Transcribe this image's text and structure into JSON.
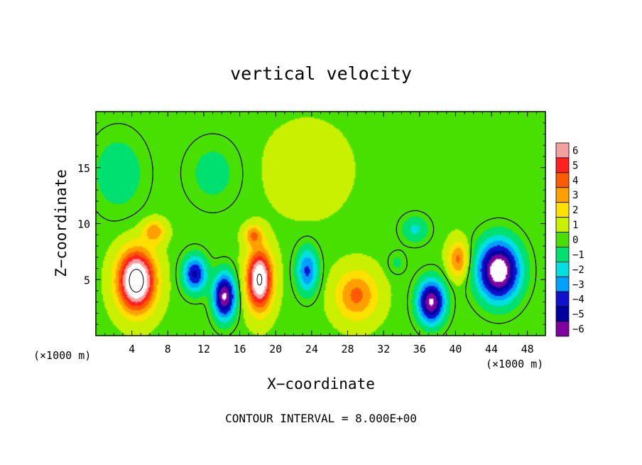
{
  "chart_data": {
    "type": "heatmap",
    "title": "vertical velocity",
    "xlabel": "X−coordinate",
    "ylabel": "Z−coordinate",
    "x_units_left": "(×1000 m)",
    "x_units_right": "(×1000 m)",
    "footer": "CONTOUR INTERVAL = 8.000E+00",
    "xlim": [
      0,
      50
    ],
    "ylim": [
      0,
      20
    ],
    "x_ticks": [
      4,
      8,
      12,
      16,
      20,
      24,
      28,
      32,
      36,
      40,
      44,
      48
    ],
    "y_ticks": [
      5,
      10,
      15
    ],
    "colorbar": {
      "levels": [
        6,
        5,
        4,
        3,
        2,
        1,
        0,
        -1,
        -2,
        -3,
        -4,
        -5,
        -6
      ],
      "labels": [
        "6",
        "5",
        "4",
        "3",
        "2",
        "1",
        "0",
        "−1",
        "−2",
        "−3",
        "−4",
        "−5",
        "−6"
      ],
      "colors": [
        "#f4a0a0",
        "#ff2020",
        "#ff5a00",
        "#ffa000",
        "#ffe000",
        "#c8f000",
        "#48e000",
        "#00e070",
        "#00e0e0",
        "#00a0ff",
        "#1010d0",
        "#0000a0",
        "#8000a0"
      ],
      "over_color": "#ffffff",
      "under_color": "#ffffff"
    },
    "background_value": 0.3,
    "features": [
      {
        "x": 4.5,
        "z": 4.9,
        "sx": 2.0,
        "sz": 2.6,
        "value": 9
      },
      {
        "x": 18.2,
        "z": 5.0,
        "sx": 1.4,
        "sz": 2.6,
        "value": 8
      },
      {
        "x": 6.5,
        "z": 9.3,
        "sx": 1.2,
        "sz": 1.0,
        "value": 3
      },
      {
        "x": 17.5,
        "z": 9.0,
        "sx": 1.0,
        "sz": 0.9,
        "value": 3
      },
      {
        "x": 11.0,
        "z": 5.5,
        "sx": 1.3,
        "sz": 1.6,
        "value": -5
      },
      {
        "x": 14.3,
        "z": 3.5,
        "sx": 1.2,
        "sz": 2.0,
        "value": -7
      },
      {
        "x": 23.5,
        "z": 5.8,
        "sx": 1.2,
        "sz": 2.0,
        "value": -4
      },
      {
        "x": 29.0,
        "z": 3.6,
        "sx": 2.3,
        "sz": 2.2,
        "value": 3.5
      },
      {
        "x": 33.5,
        "z": 6.5,
        "sx": 1.0,
        "sz": 1.0,
        "value": -1
      },
      {
        "x": 37.3,
        "z": 3.0,
        "sx": 1.5,
        "sz": 1.9,
        "value": -7
      },
      {
        "x": 40.3,
        "z": 6.8,
        "sx": 1.1,
        "sz": 1.6,
        "value": 3.5
      },
      {
        "x": 44.8,
        "z": 5.8,
        "sx": 2.3,
        "sz": 2.6,
        "value": -8
      },
      {
        "x": 2.5,
        "z": 14.5,
        "sx": 3.0,
        "sz": 3.5,
        "value": -1.5
      },
      {
        "x": 13.0,
        "z": 14.5,
        "sx": 3.0,
        "sz": 3.0,
        "value": -1.2
      },
      {
        "x": 23.5,
        "z": 14.8,
        "sx": 4.0,
        "sz": 3.5,
        "value": 1.2
      },
      {
        "x": 35.5,
        "z": 9.5,
        "sx": 1.5,
        "sz": 1.2,
        "value": -2
      }
    ]
  }
}
